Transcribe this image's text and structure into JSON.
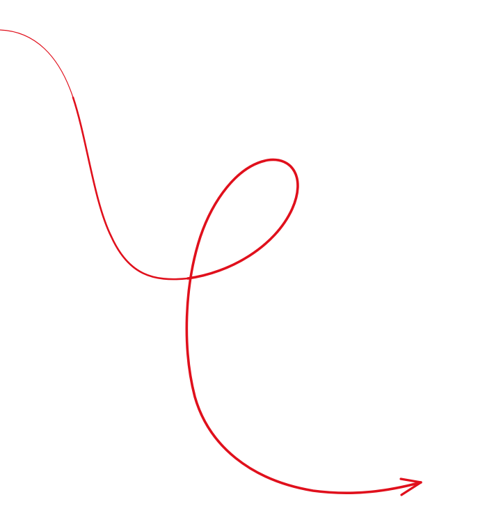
{
  "drawing": {
    "kind": "hand-drawn looping arrow",
    "icon": "curly-arrow-icon",
    "stroke_color": "#e0101c",
    "direction": "right"
  }
}
